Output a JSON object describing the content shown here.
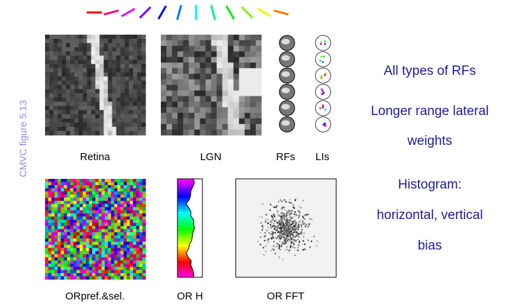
{
  "side_label": "CMVC figure 5.13",
  "panels": {
    "top_labels": [
      "Retina",
      "LGN",
      "RFs",
      "LIs"
    ],
    "bottom_labels": [
      "ORpref.&sel.",
      "OR H",
      "OR FFT"
    ]
  },
  "notes": [
    {
      "lines": [
        "All types of RFs"
      ]
    },
    {
      "lines": [
        "Longer range lateral",
        "weights"
      ]
    },
    {
      "lines": [
        "Histogram:",
        "horizontal, vertical",
        "bias"
      ]
    }
  ]
}
